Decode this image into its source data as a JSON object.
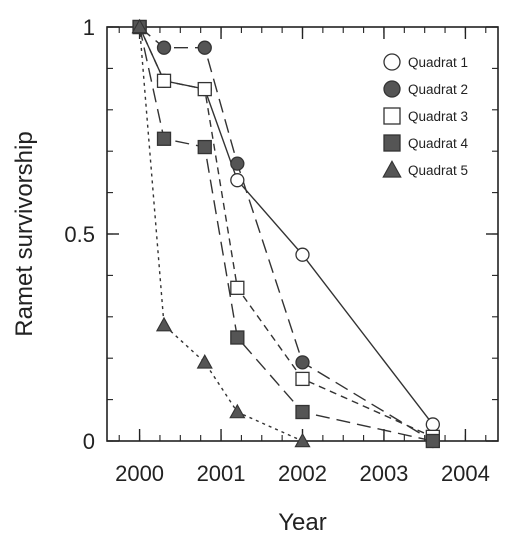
{
  "chart_data": {
    "type": "line",
    "xlabel": "Year",
    "ylabel": "Ramet survivorship",
    "xlim": [
      1999.6,
      2004.4
    ],
    "ylim": [
      0,
      1
    ],
    "x_ticks": [
      2000,
      2001,
      2002,
      2003,
      2004
    ],
    "x_tick_labels": [
      "2000",
      "2001",
      "2002",
      "2003",
      "2004"
    ],
    "y_ticks": [
      0,
      0.5,
      1
    ],
    "y_tick_labels": [
      "0",
      "0.5",
      "1"
    ],
    "grid": false,
    "legend": "top-right",
    "series": [
      {
        "name": "Quadrat 1",
        "marker": "circle-open",
        "line": "solid",
        "points": [
          [
            2000.0,
            1.0
          ],
          [
            2000.3,
            0.87
          ],
          [
            2000.8,
            0.85
          ],
          [
            2001.2,
            0.63
          ],
          [
            2002.0,
            0.45
          ],
          [
            2003.6,
            0.04
          ]
        ]
      },
      {
        "name": "Quadrat 2",
        "marker": "circle-filled",
        "line": "longdash",
        "points": [
          [
            2000.0,
            1.0
          ],
          [
            2000.3,
            0.95
          ],
          [
            2000.8,
            0.95
          ],
          [
            2001.2,
            0.67
          ],
          [
            2002.0,
            0.19
          ],
          [
            2003.6,
            0.0
          ]
        ]
      },
      {
        "name": "Quadrat 3",
        "marker": "square-open",
        "line": "shortdash",
        "points": [
          [
            2000.0,
            1.0
          ],
          [
            2000.3,
            0.87
          ],
          [
            2000.8,
            0.85
          ],
          [
            2001.2,
            0.37
          ],
          [
            2002.0,
            0.15
          ],
          [
            2003.6,
            0.01
          ]
        ]
      },
      {
        "name": "Quadrat 4",
        "marker": "square-filled",
        "line": "longdash",
        "points": [
          [
            2000.0,
            1.0
          ],
          [
            2000.3,
            0.73
          ],
          [
            2000.8,
            0.71
          ],
          [
            2001.2,
            0.25
          ],
          [
            2002.0,
            0.07
          ],
          [
            2003.6,
            0.0
          ]
        ]
      },
      {
        "name": "Quadrat 5",
        "marker": "triangle-filled",
        "line": "dotted",
        "points": [
          [
            2000.0,
            1.0
          ],
          [
            2000.3,
            0.28
          ],
          [
            2000.8,
            0.19
          ],
          [
            2001.2,
            0.07
          ],
          [
            2002.0,
            0.0
          ]
        ]
      }
    ]
  }
}
